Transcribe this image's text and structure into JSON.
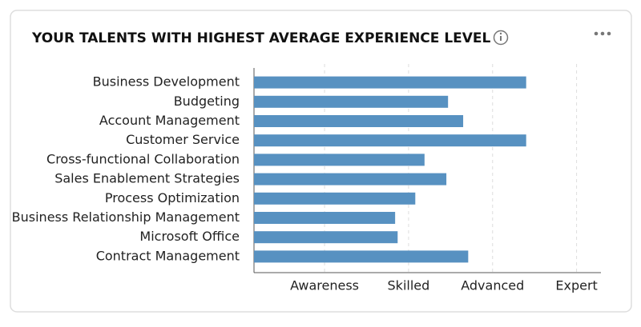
{
  "chart_data": {
    "type": "barh",
    "title": "YOUR TALENTS WITH HIGHEST AVERAGE EXPERIENCE LEVEL",
    "categories": [
      "Business Development",
      "Budgeting",
      "Account Management",
      "Customer Service",
      "Cross-functional Collaboration",
      "Sales Enablement Strategies",
      "Process Optimization",
      "Business Relationship Management",
      "Microsoft Office",
      "Contract Management"
    ],
    "values": [
      3.4,
      2.47,
      2.65,
      3.4,
      2.19,
      2.45,
      2.08,
      1.84,
      1.87,
      2.71
    ],
    "color": "#5791c1",
    "xlim": [
      0.16,
      4.29
    ],
    "xticks": [
      {
        "value": 1,
        "label": "Awareness"
      },
      {
        "value": 2,
        "label": "Skilled"
      },
      {
        "value": 3,
        "label": "Advanced"
      },
      {
        "value": 4,
        "label": "Expert"
      }
    ],
    "grid": true
  }
}
